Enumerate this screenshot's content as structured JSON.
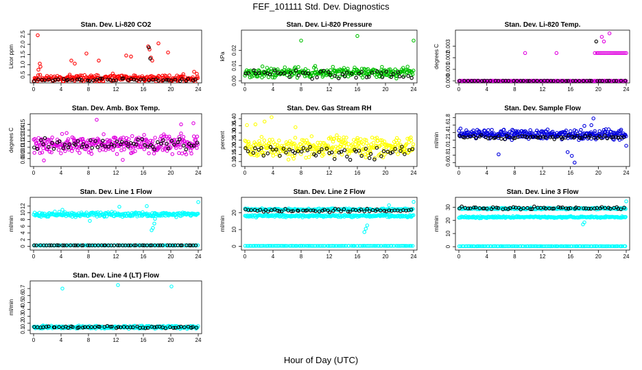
{
  "page": {
    "title": "FEF_101111  Std. Dev. Diagnostics",
    "xlabel": "Hour of Day (UTC)"
  },
  "chart_data": [
    {
      "type": "scatter",
      "title": "Stan. Dev. Li-820 CO2",
      "ylabel": "Licor ppm",
      "xlim": [
        0,
        24
      ],
      "ylim": [
        0.2,
        2.6
      ],
      "xticks": [
        0,
        4,
        8,
        12,
        16,
        20,
        24
      ],
      "yticks": [
        0.5,
        1.0,
        1.5,
        2.0,
        2.5
      ],
      "series": [
        {
          "color": "#ff0000",
          "gen": {
            "base": 0.32,
            "spread": 0.25,
            "n": 260,
            "seed": 11
          },
          "outliers": [
            [
              0.6,
              2.45
            ],
            [
              0.7,
              0.75
            ],
            [
              0.9,
              1.05
            ],
            [
              1.0,
              0.9
            ],
            [
              5.5,
              1.2
            ],
            [
              6.0,
              1.05
            ],
            [
              7.7,
              1.55
            ],
            [
              9.5,
              1.2
            ],
            [
              13.5,
              1.45
            ],
            [
              14.2,
              1.4
            ],
            [
              16.7,
              1.9
            ],
            [
              16.9,
              1.75
            ],
            [
              17.1,
              1.35
            ],
            [
              17.3,
              1.2
            ],
            [
              18.2,
              2.05
            ],
            [
              19.6,
              1.6
            ],
            [
              23.4,
              0.65
            ],
            [
              23.8,
              0.55
            ]
          ]
        },
        {
          "color": "#000000",
          "gen": {
            "base": 0.25,
            "spread": 0.1,
            "n": 48,
            "seed": 12
          },
          "outliers": [
            [
              16.8,
              1.85
            ],
            [
              17.0,
              1.3
            ]
          ]
        }
      ]
    },
    {
      "type": "scatter",
      "title": "Stan. Dev. Li-820 Pressure",
      "ylabel": "kPa",
      "xlim": [
        0,
        24
      ],
      "ylim": [
        0,
        0.032
      ],
      "xticks": [
        0,
        4,
        8,
        12,
        16,
        20,
        24
      ],
      "yticks": [
        0.0,
        0.01,
        0.02
      ],
      "series": [
        {
          "color": "#00c000",
          "gen": {
            "base": 0.0055,
            "spread": 0.0045,
            "n": 280,
            "seed": 21
          },
          "outliers": [
            [
              8.0,
              0.0265
            ],
            [
              16.0,
              0.0295
            ],
            [
              24.0,
              0.0265
            ],
            [
              2.5,
              0.0095
            ],
            [
              10.0,
              0.0098
            ],
            [
              19.5,
              0.0092
            ]
          ]
        },
        {
          "color": "#000000",
          "gen": {
            "base": 0.0045,
            "spread": 0.004,
            "n": 48,
            "seed": 22
          },
          "outliers": []
        }
      ]
    },
    {
      "type": "scatter",
      "title": "Stan. Dev. Li-820 Temp.",
      "ylabel": "degrees C",
      "xlim": [
        0,
        24
      ],
      "ylim": [
        0,
        0.0042
      ],
      "xticks": [
        0,
        4,
        8,
        12,
        16,
        20,
        24
      ],
      "yticks": [
        0.0,
        0.001,
        0.002,
        0.003
      ],
      "series": [
        {
          "color": "#e000e0",
          "gen": {
            "base": 0.0,
            "spread": 2e-05,
            "n": 240,
            "seed": 31
          },
          "outliers": [
            [
              9.5,
              0.0024
            ],
            [
              14.0,
              0.0024
            ],
            [
              19.5,
              0.0024
            ],
            [
              19.8,
              0.0024
            ],
            [
              20.0,
              0.0024
            ],
            [
              20.2,
              0.0024
            ],
            [
              20.4,
              0.0024
            ],
            [
              20.6,
              0.0024
            ],
            [
              20.8,
              0.0024
            ],
            [
              21.0,
              0.0024
            ],
            [
              21.2,
              0.0024
            ],
            [
              21.4,
              0.0024
            ],
            [
              21.6,
              0.0024
            ],
            [
              21.8,
              0.0024
            ],
            [
              22.0,
              0.0024
            ],
            [
              22.2,
              0.0024
            ],
            [
              22.4,
              0.0024
            ],
            [
              22.6,
              0.0024
            ],
            [
              22.8,
              0.0024
            ],
            [
              23.0,
              0.0024
            ],
            [
              23.2,
              0.0024
            ],
            [
              23.4,
              0.0024
            ],
            [
              23.6,
              0.0024
            ],
            [
              23.8,
              0.0024
            ],
            [
              24.0,
              0.0024
            ],
            [
              20.5,
              0.0038
            ],
            [
              21.6,
              0.0041
            ],
            [
              20.8,
              0.0034
            ]
          ]
        },
        {
          "color": "#000000",
          "gen": {
            "base": 0.0,
            "spread": 2e-05,
            "n": 48,
            "seed": 32
          },
          "outliers": [
            [
              19.7,
              0.0034
            ]
          ]
        }
      ]
    },
    {
      "type": "scatter",
      "title": "Stan. Dev. Amb. Box Temp.",
      "ylabel": "degrees C",
      "xlim": [
        0,
        24
      ],
      "ylim": [
        0.08,
        0.165
      ],
      "xticks": [
        0,
        4,
        8,
        12,
        16,
        20,
        24
      ],
      "yticks": [
        0.09,
        0.1,
        0.11,
        0.12,
        0.13,
        0.14,
        0.15
      ],
      "series": [
        {
          "color": "#e000e0",
          "gen": {
            "base": 0.115,
            "spread": 0.022,
            "n": 320,
            "seed": 41
          },
          "outliers": [
            [
              9.2,
              0.158
            ],
            [
              23.3,
              0.152
            ],
            [
              21.5,
              0.15
            ],
            [
              1.5,
              0.087
            ],
            [
              13.0,
              0.088
            ]
          ]
        },
        {
          "color": "#000000",
          "gen": {
            "base": 0.115,
            "spread": 0.013,
            "n": 60,
            "seed": 42
          },
          "outliers": []
        }
      ]
    },
    {
      "type": "scatter",
      "title": "Stan. Dev. Gas Stream RH",
      "ylabel": "percent",
      "xlim": [
        0,
        24
      ],
      "ylim": [
        0.08,
        0.42
      ],
      "xticks": [
        0,
        4,
        8,
        12,
        16,
        20,
        24
      ],
      "yticks": [
        0.1,
        0.15,
        0.2,
        0.25,
        0.3,
        0.35,
        0.4
      ],
      "series": [
        {
          "color": "#ffff00",
          "gen": {
            "base": 0.2,
            "spread": 0.1,
            "n": 320,
            "seed": 51
          },
          "outliers": [
            [
              3.8,
              0.41
            ],
            [
              2.8,
              0.38
            ],
            [
              0.3,
              0.355
            ],
            [
              7.2,
              0.34
            ],
            [
              1.5,
              0.36
            ]
          ]
        },
        {
          "color": "#000000",
          "gen": {
            "base": 0.17,
            "spread": 0.07,
            "n": 55,
            "seed": 52
          },
          "outliers": []
        }
      ]
    },
    {
      "type": "scatter",
      "title": "Stan. Dev. Sample Flow",
      "ylabel": "ml/min",
      "xlim": [
        0,
        24
      ],
      "ylim": [
        0.55,
        1.85
      ],
      "xticks": [
        0,
        4,
        8,
        12,
        16,
        20,
        24
      ],
      "yticks": [
        0.6,
        0.8,
        1.0,
        1.2,
        1.4,
        1.6,
        1.8
      ],
      "series": [
        {
          "color": "#0000dd",
          "gen": {
            "base": 1.35,
            "spread": 0.18,
            "n": 320,
            "seed": 61
          },
          "outliers": [
            [
              16.6,
              0.6
            ],
            [
              15.6,
              0.88
            ],
            [
              18.0,
              1.58
            ],
            [
              19.0,
              1.6
            ],
            [
              16.2,
              0.78
            ],
            [
              24.0,
              1.05
            ],
            [
              5.7,
              0.82
            ],
            [
              19.3,
              1.78
            ]
          ]
        },
        {
          "color": "#000000",
          "gen": {
            "base": 1.28,
            "spread": 0.08,
            "n": 60,
            "seed": 62
          },
          "outliers": []
        }
      ]
    },
    {
      "type": "scatter",
      "title": "Stan. Dev. Line 1 Flow",
      "ylabel": "ml/min",
      "xlim": [
        0,
        24
      ],
      "ylim": [
        -0.5,
        14
      ],
      "xticks": [
        0,
        4,
        8,
        12,
        16,
        20,
        24
      ],
      "yticks": [
        0,
        2,
        4,
        6,
        8,
        10,
        12
      ],
      "series": [
        {
          "color": "#00ffff",
          "gen": {
            "base": 9.5,
            "spread": 1.0,
            "n": 260,
            "seed": 71
          },
          "outliers": [
            [
              4.2,
              10.9
            ],
            [
              12.5,
              11.8
            ],
            [
              16.5,
              12.0
            ],
            [
              24.0,
              13.2
            ],
            [
              17.2,
              4.8
            ],
            [
              17.4,
              5.5
            ],
            [
              17.6,
              6.8
            ],
            [
              17.7,
              8.2
            ],
            [
              17.8,
              9.0
            ],
            [
              8.2,
              7.6
            ]
          ]
        },
        {
          "color": "#00ffff",
          "gen": {
            "base": 0.3,
            "spread": 0.05,
            "n": 120,
            "seed": 72
          },
          "outliers": []
        },
        {
          "color": "#000000",
          "gen": {
            "base": 0.3,
            "spread": 0.04,
            "n": 60,
            "seed": 73
          },
          "outliers": []
        }
      ]
    },
    {
      "type": "scatter",
      "title": "Stan. Dev. Line 2 Flow",
      "ylabel": "ml/min",
      "xlim": [
        0,
        24
      ],
      "ylim": [
        -1,
        28
      ],
      "xticks": [
        0,
        4,
        8,
        12,
        16,
        20,
        24
      ],
      "yticks": [
        0,
        10,
        20
      ],
      "series": [
        {
          "color": "#00ffff",
          "gen": {
            "base": 18.2,
            "spread": 1.2,
            "n": 230,
            "seed": 81
          },
          "outliers": [
            [
              17.0,
              8.5
            ],
            [
              17.2,
              10.5
            ],
            [
              17.4,
              12.5
            ],
            [
              20.5,
              24.5
            ],
            [
              24.0,
              26.5
            ]
          ]
        },
        {
          "color": "#00ffff",
          "gen": {
            "base": 22.0,
            "spread": 0.9,
            "n": 200,
            "seed": 82
          },
          "outliers": []
        },
        {
          "color": "#00ffff",
          "gen": {
            "base": 0.3,
            "spread": 0.05,
            "n": 120,
            "seed": 83
          },
          "outliers": []
        },
        {
          "color": "#000000",
          "gen": {
            "base": 21.5,
            "spread": 1.6,
            "n": 60,
            "seed": 84
          },
          "outliers": []
        }
      ]
    },
    {
      "type": "scatter",
      "title": "Stan. Dev. Line 3 Flow",
      "ylabel": "ml/min",
      "xlim": [
        0,
        24
      ],
      "ylim": [
        -1,
        36
      ],
      "xticks": [
        0,
        4,
        8,
        12,
        16,
        20,
        24
      ],
      "yticks": [
        0,
        10,
        20,
        30
      ],
      "series": [
        {
          "color": "#00ffff",
          "gen": {
            "base": 22.5,
            "spread": 1.0,
            "n": 230,
            "seed": 91
          },
          "outliers": [
            [
              17.8,
              17.0
            ],
            [
              18.0,
              18.5
            ],
            [
              24.0,
              34.5
            ]
          ]
        },
        {
          "color": "#00ffff",
          "gen": {
            "base": 29.0,
            "spread": 1.0,
            "n": 200,
            "seed": 92
          },
          "outliers": []
        },
        {
          "color": "#00ffff",
          "gen": {
            "base": 0.4,
            "spread": 0.06,
            "n": 120,
            "seed": 93
          },
          "outliers": []
        },
        {
          "color": "#000000",
          "gen": {
            "base": 29.5,
            "spread": 1.6,
            "n": 60,
            "seed": 94
          },
          "outliers": []
        }
      ]
    },
    {
      "type": "scatter",
      "title": "Stan. Dev. Line 4 (LT) Flow",
      "ylabel": "ml/min",
      "xlim": [
        0,
        24
      ],
      "ylim": [
        0.08,
        0.78
      ],
      "xticks": [
        0,
        4,
        8,
        12,
        16,
        20,
        24
      ],
      "yticks": [
        0.1,
        0.2,
        0.3,
        0.4,
        0.5,
        0.6,
        0.7
      ],
      "series": [
        {
          "color": "#00ffff",
          "gen": {
            "base": 0.145,
            "spread": 0.03,
            "n": 300,
            "seed": 101
          },
          "outliers": [
            [
              4.2,
              0.7
            ],
            [
              12.3,
              0.75
            ],
            [
              20.1,
              0.73
            ]
          ]
        },
        {
          "color": "#000000",
          "gen": {
            "base": 0.145,
            "spread": 0.02,
            "n": 55,
            "seed": 102
          },
          "outliers": []
        }
      ]
    }
  ]
}
